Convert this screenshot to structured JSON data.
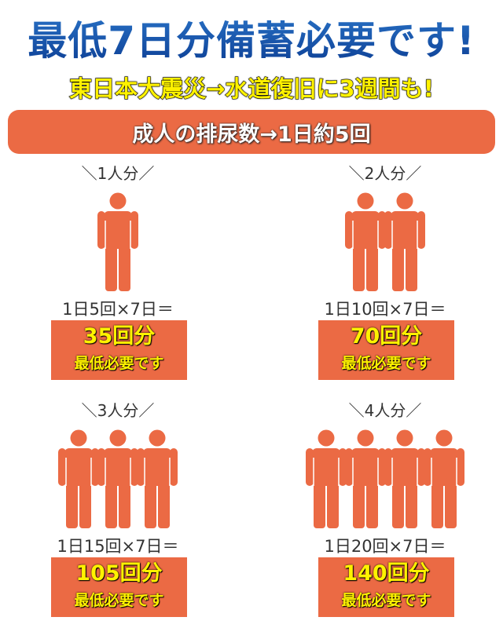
{
  "title": "最低7日分備蓄必要です!",
  "subtitle": "東日本大震災→水道復旧に3週間も!",
  "banner": "成人の排尿数→1日約5回",
  "accent_color": "#eb6a44",
  "panels": [
    {
      "label": "＼1人分／",
      "people": 1,
      "formula": "1日5回×7日＝",
      "count": "35回分",
      "note": "最低必要です"
    },
    {
      "label": "＼2人分／",
      "people": 2,
      "formula": "1日10回×7日＝",
      "count": "70回分",
      "note": "最低必要です"
    },
    {
      "label": "＼3人分／",
      "people": 3,
      "formula": "1日15回×7日＝",
      "count": "105回分",
      "note": "最低必要です"
    },
    {
      "label": "＼4人分／",
      "people": 4,
      "formula": "1日20回×7日＝",
      "count": "140回分",
      "note": "最低必要です"
    }
  ]
}
